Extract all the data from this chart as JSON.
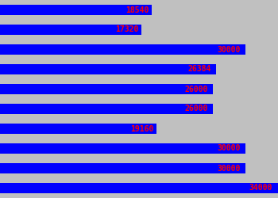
{
  "values": [
    18540,
    17320,
    30000,
    26384,
    26000,
    26000,
    19160,
    30000,
    30000,
    34000
  ],
  "bar_color": "#0000FF",
  "text_color": "#FF0000",
  "background_color": "#C0C0C0",
  "figsize": [
    3.5,
    2.5
  ],
  "dpi": 100,
  "xmax": 34000,
  "font_size": 7
}
